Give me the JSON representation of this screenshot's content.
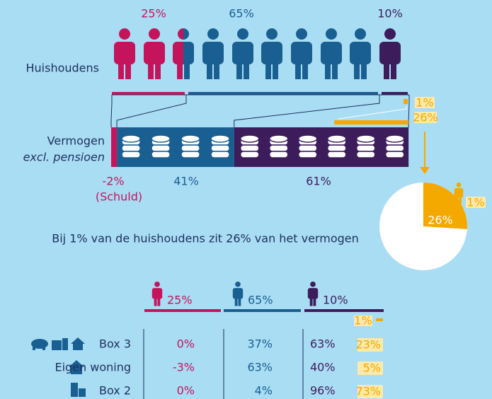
{
  "households": {
    "label": "Huishoudens",
    "shares": [
      "25%",
      "65%",
      "10%"
    ],
    "top_share": "1%"
  },
  "wealth": {
    "label": "Vermogen",
    "sublabel": "excl. pensioen",
    "shares": [
      "-2%",
      "41%",
      "61%"
    ],
    "debt_note": "(Schuld)",
    "top_share": "26%"
  },
  "pie": {
    "slice_label": "26%",
    "person_label": "1%"
  },
  "caption": "Bij 1% van de huishoudens zit 26% van het vermogen",
  "table": {
    "headers": [
      "25%",
      "65%",
      "10%"
    ],
    "top_label": "1%",
    "rows": [
      {
        "label": "Box 3",
        "values": [
          "0%",
          "37%",
          "63%"
        ],
        "top": "23%"
      },
      {
        "label": "Eigen woning",
        "values": [
          "-3%",
          "63%",
          "40%"
        ],
        "top": "5%"
      },
      {
        "label": "Box 2",
        "values": [
          "0%",
          "4%",
          "96%"
        ],
        "top": "73%"
      }
    ]
  }
}
